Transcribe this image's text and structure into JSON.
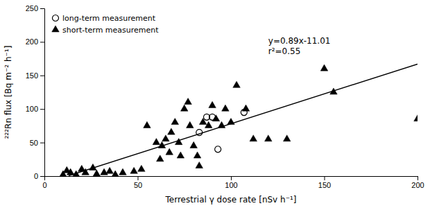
{
  "chart_data": {
    "type": "scatter",
    "xlabel": "Terrestrial γ dose rate [nSv h⁻¹]",
    "ylabel": "²²²Rn flux [Bq m⁻² h⁻¹]",
    "xlim": [
      0,
      200
    ],
    "ylim": [
      0,
      250
    ],
    "xticks": [
      0,
      50,
      100,
      150,
      200
    ],
    "yticks": [
      0,
      50,
      100,
      150,
      200,
      250
    ],
    "grid": false,
    "legend": "upper-left",
    "series": [
      {
        "name": "long-term measurement",
        "type": "scatter",
        "marker": "open-circle",
        "color": "#000000",
        "x": [
          83,
          87,
          90,
          93,
          107
        ],
        "values": [
          65,
          88,
          88,
          40,
          95
        ]
      },
      {
        "name": "short-term measurement",
        "type": "scatter",
        "marker": "triangle",
        "color": "#000000",
        "x": [
          10,
          12,
          14,
          17,
          20,
          22,
          26,
          28,
          32,
          35,
          38,
          42,
          48,
          52,
          55,
          60,
          62,
          63,
          65,
          67,
          68,
          70,
          72,
          73,
          75,
          77,
          78,
          80,
          82,
          83,
          85,
          88,
          90,
          92,
          95,
          97,
          100,
          103,
          108,
          112,
          120,
          130,
          150,
          155,
          200
        ],
        "values": [
          2,
          8,
          5,
          2,
          10,
          5,
          12,
          3,
          5,
          7,
          2,
          5,
          7,
          10,
          75,
          50,
          25,
          45,
          55,
          35,
          65,
          80,
          50,
          30,
          100,
          110,
          75,
          45,
          30,
          15,
          80,
          75,
          105,
          85,
          75,
          100,
          80,
          135,
          100,
          55,
          55,
          55,
          160,
          125,
          85
        ]
      },
      {
        "type": "line",
        "line_style": "solid",
        "color": "#000000",
        "x": [
          13,
          200
        ],
        "values": [
          0.56,
          166.99
        ]
      }
    ],
    "annotations": [
      {
        "text": "y=0.89x-11.01\nr²=0.55",
        "x": 120,
        "y": 210
      }
    ]
  }
}
